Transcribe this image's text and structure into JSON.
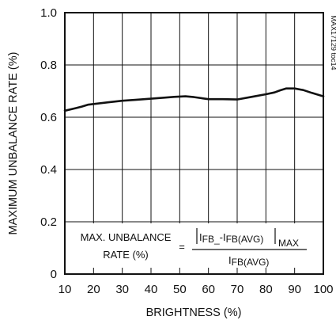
{
  "chart_data": {
    "type": "line",
    "xlabel": "BRIGHTNESS (%)",
    "ylabel": "MAXIMUM UNBALANCE RATE (%)",
    "xlim": [
      10,
      100
    ],
    "ylim": [
      0,
      1.0
    ],
    "x_ticks": [
      "10",
      "20",
      "30",
      "40",
      "50",
      "60",
      "70",
      "80",
      "90",
      "100"
    ],
    "y_ticks": [
      "0",
      "0.2",
      "0.4",
      "0.6",
      "0.8",
      "1.0"
    ],
    "grid": true,
    "chart_id": "MAX17129 toc14",
    "series": [
      {
        "x": [
          10,
          14,
          16,
          18,
          25,
          30,
          35,
          40,
          45,
          48,
          52,
          55,
          58,
          60,
          65,
          70,
          75,
          80,
          83,
          85,
          87,
          90,
          93,
          96,
          100
        ],
        "y": [
          0.625,
          0.635,
          0.641,
          0.648,
          0.657,
          0.663,
          0.667,
          0.671,
          0.675,
          0.678,
          0.68,
          0.677,
          0.672,
          0.669,
          0.669,
          0.668,
          0.678,
          0.688,
          0.695,
          0.703,
          0.71,
          0.71,
          0.704,
          0.693,
          0.68
        ]
      }
    ],
    "annotation": {
      "label_line1": "MAX. UNBALANCE",
      "label_line2": "RATE (%)",
      "equals": "=",
      "numerator_a": "I",
      "numerator_a_sub": "FB_",
      "numerator_minus": "-I",
      "numerator_b_sub": "FB(AVG)",
      "numerator_max": "MAX",
      "denominator": "I",
      "denominator_sub": "FB(AVG)"
    }
  }
}
